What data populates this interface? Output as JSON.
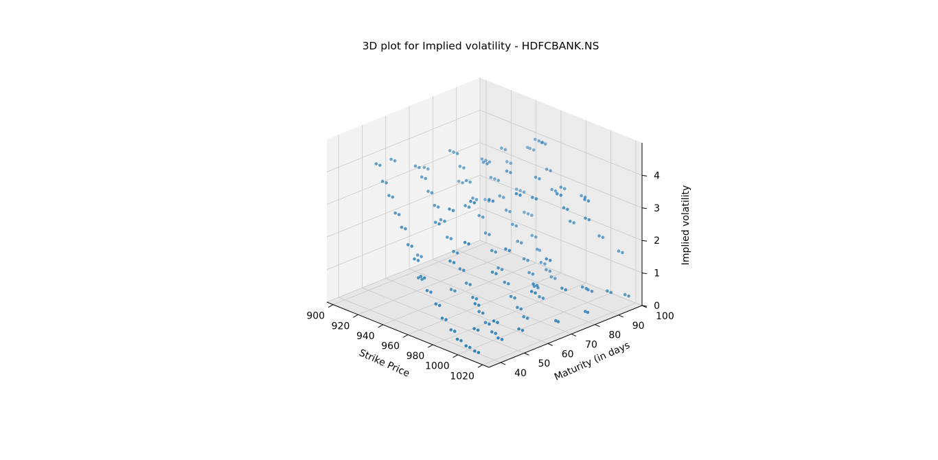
{
  "chart_data": {
    "type": "scatter",
    "projection": "3d",
    "title": "3D plot for Implied volatility - HDFCBANK.NS",
    "xlabel": "Strike Price",
    "ylabel": "Maturity (in days",
    "zlabel": "Implied volatility",
    "xlim": [
      895,
      1025
    ],
    "ylim": [
      35,
      100
    ],
    "zlim": [
      0,
      5
    ],
    "xticks": [
      900,
      920,
      940,
      960,
      980,
      1000,
      1020
    ],
    "yticks": [
      40,
      50,
      60,
      70,
      80,
      90,
      100
    ],
    "zticks": [
      0,
      1,
      2,
      3,
      4
    ],
    "grid": true,
    "marker_color": "#1f77b4",
    "pane_colors": [
      "#f2f2f2",
      "#ebebeb",
      "#e6e6e6"
    ],
    "series": [
      {
        "points": [
          [
            935,
            99,
            3.5
          ],
          [
            937,
            99,
            3.5
          ],
          [
            940,
            99,
            3.5
          ],
          [
            943,
            98,
            3.9
          ],
          [
            946,
            98,
            3.9
          ],
          [
            949,
            98,
            3.9
          ],
          [
            952,
            96,
            4.0
          ],
          [
            955,
            96,
            4.0
          ],
          [
            958,
            95,
            3.3
          ],
          [
            961,
            95,
            3.3
          ],
          [
            964,
            94,
            2.8
          ],
          [
            967,
            94,
            2.8
          ],
          [
            930,
            97,
            2.2
          ],
          [
            933,
            97,
            2.2
          ],
          [
            936,
            97,
            2.2
          ],
          [
            940,
            95,
            1.7
          ],
          [
            943,
            95,
            1.7
          ],
          [
            946,
            95,
            1.7
          ],
          [
            950,
            93,
            1.2
          ],
          [
            953,
            93,
            1.2
          ],
          [
            956,
            92,
            0.9
          ],
          [
            958,
            92,
            0.9
          ],
          [
            961,
            91,
            0.6
          ],
          [
            964,
            91,
            0.6
          ],
          [
            967,
            90,
            0.5
          ],
          [
            970,
            90,
            0.5
          ],
          [
            973,
            89,
            0.4
          ],
          [
            976,
            89,
            0.4
          ],
          [
            925,
            85,
            3.4
          ],
          [
            928,
            85,
            3.4
          ],
          [
            931,
            85,
            3.4
          ],
          [
            934,
            84,
            3.0
          ],
          [
            937,
            84,
            3.0
          ],
          [
            940,
            84,
            3.0
          ],
          [
            943,
            83,
            2.6
          ],
          [
            946,
            83,
            2.6
          ],
          [
            950,
            82,
            2.3
          ],
          [
            953,
            82,
            2.3
          ],
          [
            957,
            81,
            2.0
          ],
          [
            960,
            81,
            2.0
          ],
          [
            963,
            80,
            1.6
          ],
          [
            966,
            80,
            1.6
          ],
          [
            970,
            79,
            1.2
          ],
          [
            973,
            79,
            1.2
          ],
          [
            976,
            78,
            0.9
          ],
          [
            979,
            78,
            0.9
          ],
          [
            982,
            77,
            0.6
          ],
          [
            985,
            77,
            0.6
          ],
          [
            988,
            76,
            0.4
          ],
          [
            991,
            76,
            0.4
          ],
          [
            920,
            74,
            3.9
          ],
          [
            923,
            74,
            3.9
          ],
          [
            926,
            74,
            3.9
          ],
          [
            930,
            73,
            3.6
          ],
          [
            933,
            73,
            3.6
          ],
          [
            937,
            72,
            3.3
          ],
          [
            940,
            72,
            3.3
          ],
          [
            944,
            71,
            2.9
          ],
          [
            947,
            71,
            2.9
          ],
          [
            951,
            70,
            2.5
          ],
          [
            954,
            70,
            2.5
          ],
          [
            958,
            69,
            2.1
          ],
          [
            961,
            69,
            2.1
          ],
          [
            965,
            68,
            1.7
          ],
          [
            968,
            68,
            1.7
          ],
          [
            972,
            67,
            1.3
          ],
          [
            975,
            67,
            1.3
          ],
          [
            979,
            66,
            1.0
          ],
          [
            982,
            66,
            1.0
          ],
          [
            986,
            65,
            0.7
          ],
          [
            989,
            65,
            0.7
          ],
          [
            993,
            64,
            0.5
          ],
          [
            996,
            64,
            0.5
          ],
          [
            1000,
            63,
            0.35
          ],
          [
            1003,
            63,
            0.35
          ],
          [
            915,
            62,
            3.7
          ],
          [
            918,
            62,
            3.7
          ],
          [
            922,
            61,
            3.5
          ],
          [
            925,
            61,
            3.5
          ],
          [
            929,
            60,
            3.2
          ],
          [
            932,
            60,
            3.2
          ],
          [
            936,
            59,
            2.9
          ],
          [
            939,
            59,
            2.9
          ],
          [
            943,
            58,
            2.6
          ],
          [
            946,
            58,
            2.6
          ],
          [
            950,
            57,
            2.2
          ],
          [
            953,
            57,
            2.2
          ],
          [
            957,
            56,
            1.9
          ],
          [
            960,
            56,
            1.9
          ],
          [
            964,
            55,
            1.5
          ],
          [
            967,
            55,
            1.5
          ],
          [
            971,
            54,
            1.2
          ],
          [
            974,
            54,
            1.2
          ],
          [
            978,
            53,
            0.9
          ],
          [
            981,
            53,
            0.9
          ],
          [
            985,
            52,
            0.6
          ],
          [
            988,
            52,
            0.6
          ],
          [
            992,
            51,
            0.4
          ],
          [
            995,
            51,
            0.4
          ],
          [
            999,
            50,
            0.25
          ],
          [
            1002,
            50,
            0.25
          ],
          [
            1006,
            49,
            0.2
          ],
          [
            1009,
            49,
            0.2
          ],
          [
            910,
            48,
            4.1
          ],
          [
            913,
            48,
            4.1
          ],
          [
            917,
            47,
            3.7
          ],
          [
            920,
            47,
            3.7
          ],
          [
            924,
            46,
            3.4
          ],
          [
            927,
            46,
            3.4
          ],
          [
            931,
            45,
            3.0
          ],
          [
            934,
            45,
            3.0
          ],
          [
            938,
            44,
            2.7
          ],
          [
            941,
            44,
            2.7
          ],
          [
            945,
            43,
            2.3
          ],
          [
            948,
            43,
            2.3
          ],
          [
            952,
            42,
            2.0
          ],
          [
            955,
            42,
            2.0
          ],
          [
            959,
            41,
            1.6
          ],
          [
            962,
            41,
            1.6
          ],
          [
            966,
            40,
            1.3
          ],
          [
            969,
            40,
            1.3
          ],
          [
            973,
            40,
            1.0
          ],
          [
            976,
            40,
            1.0
          ],
          [
            980,
            39,
            0.7
          ],
          [
            983,
            39,
            0.7
          ],
          [
            987,
            39,
            0.45
          ],
          [
            990,
            39,
            0.45
          ],
          [
            994,
            38,
            0.3
          ],
          [
            997,
            38,
            0.3
          ],
          [
            1001,
            38,
            0.2
          ],
          [
            1004,
            38,
            0.2
          ],
          [
            1008,
            38,
            0.15
          ],
          [
            1011,
            38,
            0.15
          ],
          [
            905,
            57,
            3.9
          ],
          [
            908,
            57,
            3.9
          ],
          [
            907,
            70,
            3.3
          ],
          [
            910,
            70,
            3.3
          ],
          [
            912,
            82,
            2.6
          ],
          [
            915,
            82,
            2.6
          ],
          [
            918,
            90,
            1.9
          ],
          [
            921,
            90,
            1.9
          ],
          [
            960,
            77,
            3.8
          ],
          [
            963,
            77,
            3.8
          ],
          [
            968,
            85,
            3.5
          ],
          [
            971,
            85,
            3.5
          ],
          [
            975,
            92,
            3.1
          ],
          [
            978,
            92,
            3.1
          ],
          [
            982,
            97,
            2.8
          ],
          [
            985,
            97,
            2.8
          ],
          [
            990,
            88,
            2.4
          ],
          [
            993,
            88,
            2.4
          ],
          [
            1000,
            95,
            1.9
          ],
          [
            1003,
            95,
            1.9
          ],
          [
            1010,
            98,
            1.5
          ],
          [
            1013,
            98,
            1.5
          ],
          [
            1015,
            80,
            1.0
          ],
          [
            1018,
            80,
            1.0
          ],
          [
            1016,
            90,
            0.6
          ],
          [
            1019,
            90,
            0.6
          ],
          [
            1017,
            97,
            0.3
          ],
          [
            1020,
            97,
            0.3
          ],
          [
            985,
            46,
            2.9
          ],
          [
            988,
            46,
            2.9
          ],
          [
            995,
            58,
            2.5
          ],
          [
            998,
            58,
            2.5
          ],
          [
            1005,
            70,
            2.0
          ],
          [
            1008,
            70,
            2.0
          ],
          [
            1012,
            60,
            1.4
          ],
          [
            1015,
            60,
            1.4
          ],
          [
            1010,
            45,
            0.9
          ],
          [
            1013,
            45,
            0.9
          ],
          [
            1000,
            42,
            0.6
          ],
          [
            1003,
            42,
            0.6
          ],
          [
            1015,
            53,
            0.5
          ],
          [
            1018,
            53,
            0.5
          ],
          [
            1020,
            66,
            0.45
          ],
          [
            1022,
            66,
            0.45
          ],
          [
            1021,
            78,
            0.4
          ],
          [
            1023,
            78,
            0.4
          ],
          [
            950,
            52,
            2.8
          ],
          [
            953,
            52,
            2.8
          ],
          [
            955,
            62,
            3.1
          ],
          [
            958,
            62,
            3.1
          ],
          [
            945,
            75,
            3.9
          ],
          [
            948,
            75,
            3.9
          ],
          [
            935,
            88,
            3.8
          ],
          [
            938,
            88,
            3.8
          ],
          [
            928,
            94,
            3.1
          ],
          [
            931,
            94,
            3.1
          ],
          [
            965,
            50,
            3.5
          ],
          [
            968,
            50,
            3.5
          ],
          [
            978,
            60,
            3.7
          ],
          [
            981,
            60,
            3.7
          ],
          [
            990,
            72,
            3.6
          ],
          [
            993,
            72,
            3.6
          ],
          [
            1000,
            80,
            3.2
          ],
          [
            1003,
            80,
            3.2
          ],
          [
            1006,
            86,
            2.8
          ],
          [
            1009,
            86,
            2.8
          ],
          [
            975,
            45,
            2.2
          ],
          [
            978,
            45,
            2.2
          ],
          [
            990,
            55,
            1.8
          ],
          [
            993,
            55,
            1.8
          ],
          [
            1002,
            66,
            1.3
          ],
          [
            1005,
            66,
            1.3
          ],
          [
            1008,
            75,
            1.0
          ],
          [
            1011,
            75,
            1.0
          ],
          [
            1012,
            84,
            0.75
          ],
          [
            1015,
            84,
            0.75
          ],
          [
            995,
            45,
            1.2
          ],
          [
            998,
            45,
            1.2
          ],
          [
            982,
            50,
            4.0
          ],
          [
            985,
            50,
            4.0
          ],
          [
            996,
            62,
            4.1
          ],
          [
            999,
            62,
            4.1
          ],
          [
            1006,
            74,
            3.9
          ],
          [
            1009,
            74,
            3.9
          ],
          [
            1013,
            82,
            3.6
          ],
          [
            1016,
            82,
            3.6
          ],
          [
            940,
            50,
            1.0
          ],
          [
            943,
            50,
            1.0
          ],
          [
            955,
            56,
            0.7
          ],
          [
            958,
            56,
            0.7
          ],
          [
            930,
            55,
            1.4
          ],
          [
            933,
            55,
            1.4
          ]
        ]
      }
    ]
  }
}
